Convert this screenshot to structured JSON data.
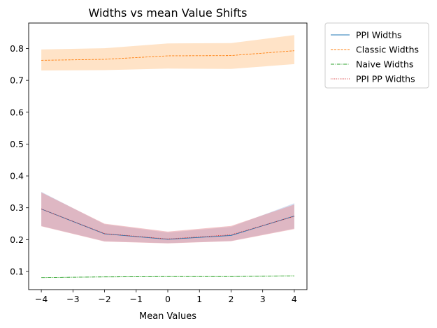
{
  "chart_data": {
    "type": "line",
    "title": "Widths vs mean Value Shifts",
    "xlabel": "Mean Values",
    "ylabel": "",
    "x": [
      -4,
      -2,
      0,
      2,
      4
    ],
    "xlim": [
      -4.4,
      4.4
    ],
    "ylim": [
      0.043,
      0.88
    ],
    "xticks": [
      -4,
      -3,
      -2,
      -1,
      0,
      1,
      2,
      3,
      4
    ],
    "yticks": [
      0.1,
      0.2,
      0.3,
      0.4,
      0.5,
      0.6,
      0.7,
      0.8
    ],
    "grid": false,
    "legend_position": "outside-top-right",
    "series": [
      {
        "name": "PPI Widths",
        "color": "#1f77b4",
        "band_color": "#aec7e8",
        "linestyle": "solid",
        "values": [
          0.296,
          0.218,
          0.201,
          0.213,
          0.274
        ],
        "lower": [
          0.243,
          0.195,
          0.189,
          0.196,
          0.235
        ],
        "upper": [
          0.35,
          0.248,
          0.222,
          0.24,
          0.314
        ]
      },
      {
        "name": "Classic Widths",
        "color": "#ff7f0e",
        "band_color": "#ffcc99",
        "linestyle": "dashed",
        "values": [
          0.763,
          0.766,
          0.777,
          0.778,
          0.793
        ],
        "lower": [
          0.731,
          0.732,
          0.737,
          0.736,
          0.751
        ],
        "upper": [
          0.797,
          0.801,
          0.816,
          0.817,
          0.842
        ]
      },
      {
        "name": "Naive Widths",
        "color": "#2ca02c",
        "band_color": "#98df8a",
        "linestyle": "dashdot",
        "values": [
          0.081,
          0.083,
          0.084,
          0.084,
          0.086
        ],
        "lower": [
          0.08,
          0.082,
          0.083,
          0.083,
          0.085
        ],
        "upper": [
          0.082,
          0.084,
          0.085,
          0.085,
          0.088
        ]
      },
      {
        "name": "PPI PP Widths",
        "color": "#d62728",
        "band_color": "#e7969c",
        "linestyle": "dotted",
        "values": [
          0.296,
          0.219,
          0.202,
          0.215,
          0.273
        ],
        "lower": [
          0.242,
          0.194,
          0.188,
          0.195,
          0.233
        ],
        "upper": [
          0.348,
          0.25,
          0.225,
          0.243,
          0.31
        ]
      }
    ]
  }
}
